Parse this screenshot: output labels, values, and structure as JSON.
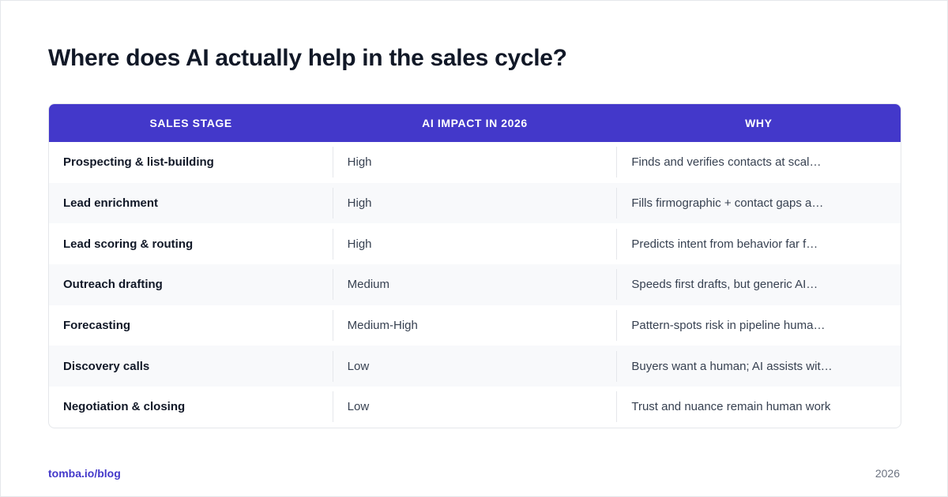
{
  "title": "Where does AI actually help in the sales cycle?",
  "table": {
    "headers": [
      "SALES STAGE",
      "AI IMPACT IN 2026",
      "WHY"
    ],
    "rows": [
      {
        "stage": "Prospecting & list-building",
        "impact": "High",
        "why": "Finds and verifies contacts at scal…"
      },
      {
        "stage": "Lead enrichment",
        "impact": "High",
        "why": "Fills firmographic + contact gaps a…"
      },
      {
        "stage": "Lead scoring & routing",
        "impact": "High",
        "why": "Predicts intent from behavior far f…"
      },
      {
        "stage": "Outreach drafting",
        "impact": "Medium",
        "why": "Speeds first drafts, but generic AI…"
      },
      {
        "stage": "Forecasting",
        "impact": "Medium-High",
        "why": "Pattern-spots risk in pipeline huma…"
      },
      {
        "stage": "Discovery calls",
        "impact": "Low",
        "why": "Buyers want a human; AI assists wit…"
      },
      {
        "stage": "Negotiation & closing",
        "impact": "Low",
        "why": "Trust and nuance remain human work"
      }
    ]
  },
  "footer": {
    "link": "tomba.io/blog",
    "year": "2026"
  },
  "colors": {
    "header_bg": "#4338ca",
    "link": "#4338ca",
    "title": "#111827",
    "row_alt": "#f8f9fb"
  }
}
